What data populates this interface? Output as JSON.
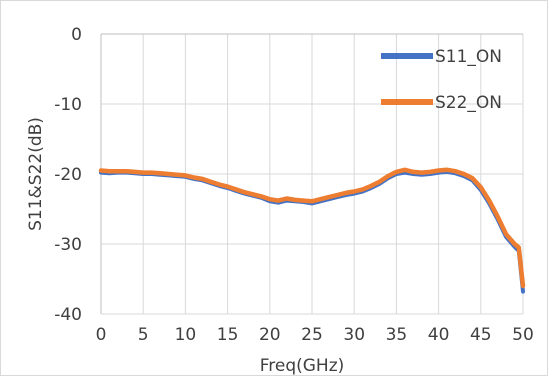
{
  "chart_data": {
    "type": "line",
    "title": "",
    "xlabel": "Freq(GHz)",
    "ylabel": "S11&S22(dB)",
    "xlim": [
      0,
      50
    ],
    "ylim": [
      -40,
      0
    ],
    "xticks": [
      0,
      5,
      10,
      15,
      20,
      25,
      30,
      35,
      40,
      45,
      50
    ],
    "yticks": [
      0,
      -10,
      -20,
      -30,
      -40
    ],
    "grid": true,
    "legend_position": "top-right",
    "series": [
      {
        "name": "S11_ON",
        "color": "#4472C4",
        "x": [
          0,
          1,
          2,
          3,
          4,
          5,
          6,
          7,
          8,
          9,
          10,
          11,
          12,
          13,
          14,
          15,
          16,
          17,
          18,
          19,
          20,
          21,
          22,
          23,
          24,
          25,
          26,
          27,
          28,
          29,
          30,
          31,
          32,
          33,
          34,
          35,
          36,
          37,
          38,
          39,
          40,
          41,
          42,
          43,
          44,
          45,
          46,
          47,
          48,
          49,
          49.5,
          50
        ],
        "y": [
          -19.8,
          -19.9,
          -19.8,
          -19.8,
          -19.9,
          -20.0,
          -20.0,
          -20.1,
          -20.2,
          -20.3,
          -20.4,
          -20.7,
          -20.9,
          -21.3,
          -21.7,
          -22.0,
          -22.4,
          -22.8,
          -23.1,
          -23.4,
          -23.9,
          -24.1,
          -23.8,
          -23.9,
          -24.0,
          -24.2,
          -23.9,
          -23.6,
          -23.3,
          -23.0,
          -22.8,
          -22.5,
          -22.0,
          -21.4,
          -20.6,
          -20.0,
          -19.8,
          -20.0,
          -20.1,
          -20.0,
          -19.8,
          -19.7,
          -19.9,
          -20.3,
          -20.9,
          -22.3,
          -24.2,
          -26.5,
          -29.0,
          -30.4,
          -31.0,
          -36.8
        ]
      },
      {
        "name": "S22_ON",
        "color": "#ED7D31",
        "x": [
          0,
          1,
          2,
          3,
          4,
          5,
          6,
          7,
          8,
          9,
          10,
          11,
          12,
          13,
          14,
          15,
          16,
          17,
          18,
          19,
          20,
          21,
          22,
          23,
          24,
          25,
          26,
          27,
          28,
          29,
          30,
          31,
          32,
          33,
          34,
          35,
          36,
          37,
          38,
          39,
          40,
          41,
          42,
          43,
          44,
          45,
          46,
          47,
          48,
          49,
          49.5,
          50
        ],
        "y": [
          -19.5,
          -19.6,
          -19.6,
          -19.6,
          -19.7,
          -19.8,
          -19.8,
          -19.9,
          -20.0,
          -20.1,
          -20.2,
          -20.5,
          -20.7,
          -21.1,
          -21.5,
          -21.8,
          -22.2,
          -22.6,
          -22.9,
          -23.2,
          -23.6,
          -23.8,
          -23.5,
          -23.7,
          -23.8,
          -23.9,
          -23.6,
          -23.3,
          -23.0,
          -22.7,
          -22.5,
          -22.2,
          -21.7,
          -21.1,
          -20.3,
          -19.7,
          -19.4,
          -19.7,
          -19.8,
          -19.7,
          -19.5,
          -19.4,
          -19.6,
          -20.0,
          -20.6,
          -21.9,
          -23.8,
          -26.1,
          -28.6,
          -30.0,
          -30.5,
          -36.0
        ]
      }
    ]
  }
}
